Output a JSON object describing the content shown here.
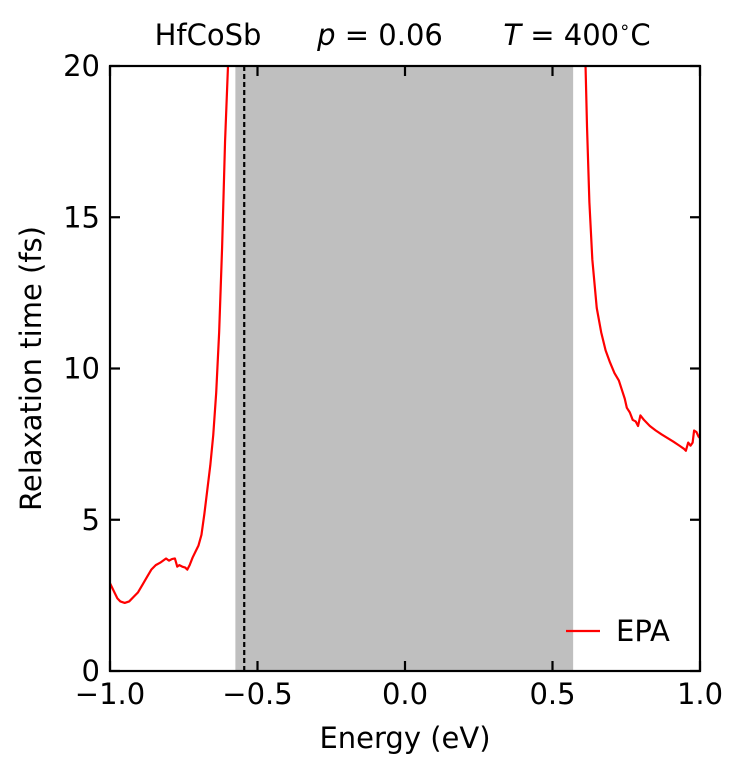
{
  "chart_data": {
    "type": "line",
    "title_parts": {
      "material": "HfCoSb",
      "p_symbol": "p",
      "p_value": " = 0.06",
      "t_symbol": "T",
      "t_value": " = 400",
      "t_degree": "∘",
      "t_unit": "C"
    },
    "xlabel": "Energy (eV)",
    "ylabel": "Relaxation time (fs)",
    "xlim": [
      -1.0,
      1.0
    ],
    "ylim": [
      0,
      20
    ],
    "xticks": [
      -1.0,
      -0.5,
      0.0,
      0.5,
      1.0
    ],
    "xtick_labels": [
      "−1.0",
      "−0.5",
      "0.0",
      "0.5",
      "1.0"
    ],
    "yticks": [
      0,
      5,
      10,
      15,
      20
    ],
    "ytick_labels": [
      "0",
      "5",
      "10",
      "15",
      "20"
    ],
    "grid": false,
    "legend_position": "bottom-right",
    "band_gap_region": {
      "x_start": -0.575,
      "x_end": 0.57,
      "color": "#bfbfbf"
    },
    "fermi_level_line": {
      "x": -0.545,
      "style": "dashed",
      "color": "#000000"
    },
    "series": [
      {
        "name": "EPA",
        "color": "#ff0000",
        "segments": [
          [
            [
              -1.0,
              2.9
            ],
            [
              -0.985,
              2.6
            ],
            [
              -0.975,
              2.4
            ],
            [
              -0.965,
              2.3
            ],
            [
              -0.95,
              2.25
            ],
            [
              -0.935,
              2.3
            ],
            [
              -0.92,
              2.45
            ],
            [
              -0.905,
              2.6
            ],
            [
              -0.89,
              2.85
            ],
            [
              -0.875,
              3.1
            ],
            [
              -0.86,
              3.35
            ],
            [
              -0.845,
              3.5
            ],
            [
              -0.83,
              3.58
            ],
            [
              -0.82,
              3.65
            ],
            [
              -0.81,
              3.72
            ],
            [
              -0.8,
              3.65
            ],
            [
              -0.79,
              3.7
            ],
            [
              -0.78,
              3.72
            ],
            [
              -0.772,
              3.45
            ],
            [
              -0.765,
              3.5
            ],
            [
              -0.755,
              3.45
            ],
            [
              -0.745,
              3.42
            ],
            [
              -0.738,
              3.35
            ],
            [
              -0.73,
              3.5
            ],
            [
              -0.72,
              3.75
            ],
            [
              -0.71,
              3.95
            ],
            [
              -0.7,
              4.15
            ],
            [
              -0.69,
              4.5
            ],
            [
              -0.68,
              5.2
            ],
            [
              -0.67,
              6.0
            ],
            [
              -0.66,
              6.8
            ],
            [
              -0.65,
              7.8
            ],
            [
              -0.64,
              9.2
            ],
            [
              -0.63,
              11.2
            ],
            [
              -0.62,
              14.0
            ],
            [
              -0.61,
              17.5
            ],
            [
              -0.6,
              20.0
            ]
          ],
          [
            [
              0.612,
              20.0
            ],
            [
              0.617,
              18.0
            ],
            [
              0.625,
              15.5
            ],
            [
              0.635,
              13.6
            ],
            [
              0.65,
              12.0
            ],
            [
              0.665,
              11.2
            ],
            [
              0.68,
              10.6
            ],
            [
              0.695,
              10.2
            ],
            [
              0.71,
              9.85
            ],
            [
              0.725,
              9.6
            ],
            [
              0.735,
              9.3
            ],
            [
              0.745,
              9.0
            ],
            [
              0.752,
              8.7
            ],
            [
              0.762,
              8.55
            ],
            [
              0.772,
              8.3
            ],
            [
              0.782,
              8.25
            ],
            [
              0.79,
              8.1
            ],
            [
              0.798,
              8.45
            ],
            [
              0.81,
              8.3
            ],
            [
              0.83,
              8.1
            ],
            [
              0.85,
              7.95
            ],
            [
              0.87,
              7.82
            ],
            [
              0.89,
              7.7
            ],
            [
              0.91,
              7.58
            ],
            [
              0.93,
              7.45
            ],
            [
              0.945,
              7.35
            ],
            [
              0.952,
              7.28
            ],
            [
              0.96,
              7.55
            ],
            [
              0.968,
              7.45
            ],
            [
              0.975,
              7.55
            ],
            [
              0.98,
              7.95
            ],
            [
              0.988,
              7.9
            ],
            [
              0.995,
              7.75
            ],
            [
              1.0,
              7.7
            ]
          ]
        ]
      }
    ]
  }
}
